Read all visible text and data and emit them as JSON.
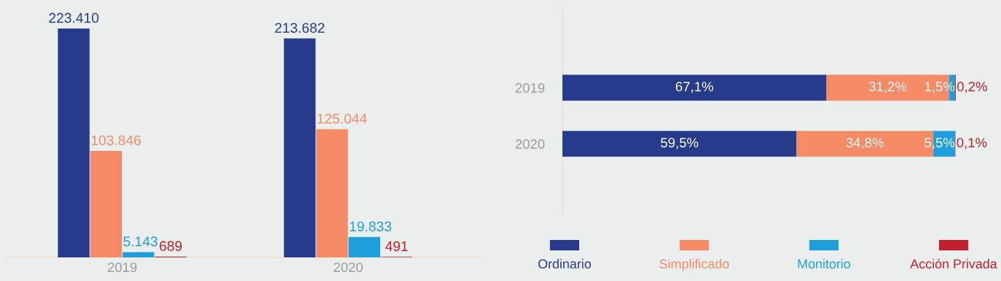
{
  "chart_data": [
    {
      "type": "bar",
      "categories": [
        "2019",
        "2020"
      ],
      "tick_labels": "x",
      "series": [
        {
          "color": "#283a8c",
          "values": [
            223410,
            213682
          ],
          "value_labels": [
            "223.410",
            "213.682"
          ]
        },
        {
          "color": "#f58a66",
          "values": [
            103846,
            125044
          ],
          "value_labels": [
            "103.846",
            "125.044"
          ]
        },
        {
          "color": "#1e9fd9",
          "values": [
            5143,
            19833
          ],
          "value_labels": [
            "5.143",
            "19.833"
          ]
        },
        {
          "color": "#c01f2f",
          "values": [
            689,
            491
          ],
          "value_labels": [
            "689",
            "491"
          ]
        }
      ]
    },
    {
      "type": "bar",
      "orientation": "horizontal",
      "stacked": true,
      "categories": [
        "2019",
        "2020"
      ],
      "tick_labels": "y",
      "legend": "bottom",
      "series": [
        {
          "name": "Ordinario",
          "color": "#283a8c",
          "values": [
            67.1,
            59.5
          ],
          "value_labels": [
            "67,1%",
            "59,5%"
          ]
        },
        {
          "name": "Simplificado",
          "color": "#f58a66",
          "values": [
            31.2,
            34.8
          ],
          "value_labels": [
            "31,2%",
            "34,8%"
          ]
        },
        {
          "name": "Monitorio",
          "color": "#1e9fd9",
          "values": [
            1.5,
            5.5
          ],
          "value_labels": [
            "1,5%",
            "5,5%"
          ]
        },
        {
          "name": "Acción Privada",
          "color": "#c01f2f",
          "values": [
            0.2,
            0.1
          ],
          "value_labels": [
            "0,2%",
            "0,1%"
          ]
        }
      ]
    }
  ]
}
